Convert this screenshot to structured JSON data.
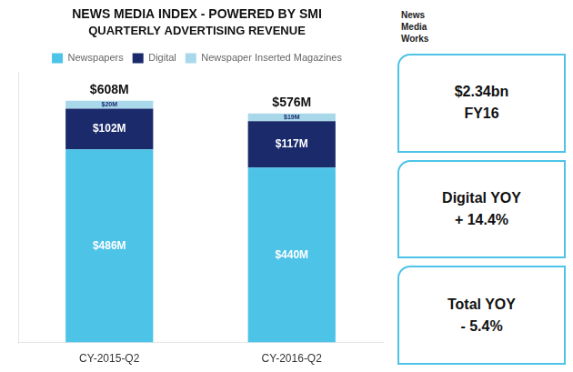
{
  "chart_data": {
    "type": "bar",
    "stacked": true,
    "title": "NEWS MEDIA INDEX - POWERED BY SMI",
    "subtitle": "QUARTERLY ADVERTISING REVENUE",
    "categories": [
      "CY-2015-Q2",
      "CY-2016-Q2"
    ],
    "series": [
      {
        "name": "Newspapers",
        "color": "#4DC3E8",
        "values": [
          486,
          440
        ],
        "value_labels": [
          "$486M",
          "$440M"
        ]
      },
      {
        "name": "Digital",
        "color": "#1B2A6B",
        "values": [
          102,
          117
        ],
        "value_labels": [
          "$102M",
          "$117M"
        ]
      },
      {
        "name": "Newspaper Inserted Magazines",
        "color": "#A8D8EA",
        "values": [
          20,
          19
        ],
        "value_labels": [
          "$20M",
          "$19M"
        ]
      }
    ],
    "totals": [
      608,
      576
    ],
    "total_labels": [
      "$608M",
      "$576M"
    ],
    "ylim": [
      0,
      680
    ],
    "grid": false,
    "legend": "top",
    "data_labels": true,
    "tick_labels": "x",
    "annotations": [
      {
        "lines": [
          "News",
          "Media",
          "Works"
        ]
      },
      {
        "lines": [
          "$2.34bn",
          "FY16"
        ]
      },
      {
        "lines": [
          "Digital YOY",
          "+ 14.4%"
        ]
      },
      {
        "lines": [
          "Total YOY",
          "- 5.4%"
        ]
      }
    ]
  }
}
